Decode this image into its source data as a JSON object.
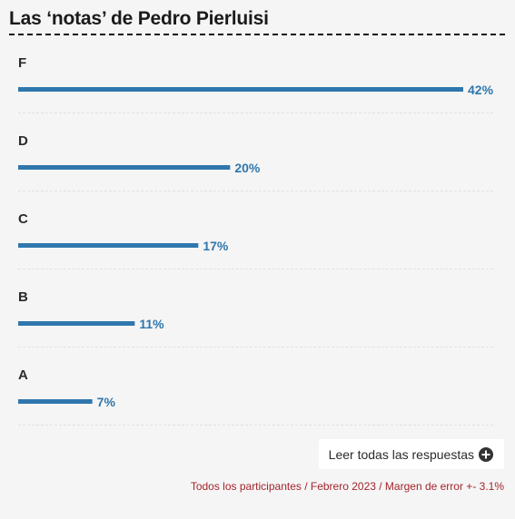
{
  "title": "Las ‘notas’ de Pedro Pierluisi",
  "button": {
    "label": "Leer todas las respuestas",
    "icon": "plus-circle-icon"
  },
  "source_note": "Todos los participantes / Febrero 2023 / Margen de error +- 3.1%",
  "colors": {
    "bar": "#2f77ad",
    "value_text": "#2f77ad",
    "source_text": "#a3252c",
    "background": "#f5f5f5"
  },
  "chart_data": {
    "type": "bar",
    "orientation": "horizontal",
    "categories": [
      "F",
      "D",
      "C",
      "B",
      "A"
    ],
    "values": [
      42,
      20,
      17,
      11,
      7
    ],
    "value_labels": [
      "42%",
      "20%",
      "17%",
      "11%",
      "7%"
    ],
    "unit": "%",
    "xlim": [
      0,
      42
    ],
    "grid": false,
    "legend": "none"
  }
}
